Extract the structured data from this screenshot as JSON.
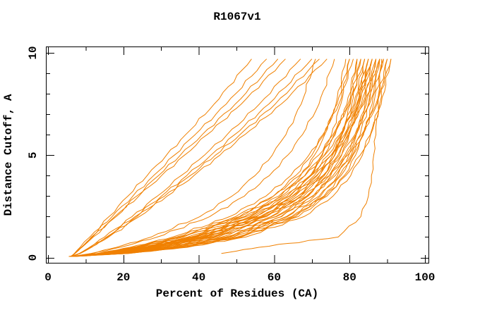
{
  "window": {
    "background": "#ffffff"
  },
  "chart_data": {
    "type": "line",
    "title": "R1067v1",
    "xlabel": "Percent of Residues (CA)",
    "ylabel": "Distance Cutoff, A",
    "xlim": [
      0,
      100
    ],
    "ylim": [
      0,
      10
    ],
    "x_major_ticks": [
      0,
      20,
      40,
      60,
      80,
      100
    ],
    "x_minor_tick_step": 10,
    "y_major_ticks": [
      0,
      5,
      10
    ],
    "y_minor_tick_step": 1,
    "grid": false,
    "legend": false,
    "curve_color": "#f08000",
    "axis_color": "#000000",
    "cutoffs": [
      0.05,
      0.2,
      0.5,
      1,
      2,
      3,
      4,
      5,
      6,
      7.5,
      9.7
    ],
    "series_unit": "percent of CA residues under each distance cutoff (estimated per curve)",
    "series": [
      [
        6.0,
        7.0,
        8.5,
        11.1,
        16.2,
        21.2,
        26.3,
        31.4,
        36.5,
        44.1,
        54.0
      ],
      [
        6.2,
        7.1,
        8.8,
        11.5,
        17.0,
        22.5,
        28.0,
        33.5,
        39.0,
        47.3,
        58.0
      ],
      [
        6.0,
        7.2,
        8.9,
        11.8,
        17.7,
        23.5,
        29.3,
        35.1,
        40.9,
        49.7,
        61.0
      ],
      [
        6.3,
        7.2,
        9.0,
        12.0,
        18.1,
        24.1,
        30.1,
        36.2,
        42.2,
        51.3,
        63.0
      ],
      [
        6.1,
        8.3,
        11.0,
        15.0,
        22.3,
        29.0,
        35.3,
        41.5,
        47.5,
        56.1,
        67.0
      ],
      [
        6.4,
        8.4,
        11.2,
        15.5,
        23.1,
        30.1,
        36.8,
        43.2,
        49.5,
        58.6,
        70.0
      ],
      [
        6.0,
        8.5,
        11.4,
        15.8,
        23.6,
        30.9,
        37.7,
        44.4,
        50.9,
        60.3,
        72.0
      ],
      [
        6.2,
        8.6,
        11.6,
        16.1,
        24.2,
        31.6,
        38.7,
        45.6,
        52.2,
        61.9,
        74.0
      ],
      [
        6.5,
        11.8,
        19.2,
        29.0,
        42.9,
        52.1,
        58.7,
        63.6,
        67.5,
        71.9,
        76.0
      ],
      [
        6.1,
        11.4,
        18.2,
        27.4,
        40.3,
        48.8,
        54.9,
        59.5,
        63.1,
        67.2,
        71.0
      ],
      [
        6.0,
        20.7,
        35.5,
        50.2,
        65.0,
        72.3,
        76.8,
        79.8,
        81.8,
        84.1,
        86.0
      ],
      [
        6.8,
        21.1,
        36.3,
        51.3,
        66.4,
        74.0,
        78.6,
        81.6,
        83.7,
        86.0,
        88.0
      ],
      [
        5.6,
        20.4,
        34.8,
        49.1,
        63.5,
        70.7,
        75.0,
        77.9,
        79.9,
        82.1,
        84.0
      ],
      [
        6.2,
        18.3,
        31.6,
        46.1,
        61.8,
        70.3,
        75.6,
        79.1,
        81.7,
        84.5,
        87.0
      ],
      [
        7.0,
        18.0,
        31.0,
        45.1,
        60.4,
        68.7,
        73.9,
        77.3,
        79.9,
        82.6,
        85.0
      ],
      [
        5.8,
        18.6,
        32.2,
        47.1,
        63.2,
        71.9,
        77.3,
        80.9,
        83.6,
        86.4,
        89.0
      ],
      [
        6.4,
        16.4,
        28.3,
        42.0,
        58.0,
        67.0,
        72.9,
        76.9,
        79.8,
        83.1,
        86.0
      ],
      [
        5.5,
        16.7,
        28.9,
        42.9,
        59.3,
        68.6,
        74.6,
        78.7,
        81.7,
        85.0,
        88.0
      ],
      [
        6.9,
        16.1,
        27.8,
        41.1,
        56.7,
        65.5,
        71.2,
        75.1,
        78.0,
        81.2,
        84.0
      ],
      [
        6.1,
        14.9,
        25.6,
        38.7,
        55.0,
        64.9,
        71.4,
        76.1,
        79.5,
        83.4,
        87.0
      ],
      [
        6.6,
        14.7,
        25.1,
        37.9,
        53.8,
        63.4,
        69.8,
        74.3,
        77.7,
        81.5,
        85.0
      ],
      [
        5.7,
        15.1,
        26.1,
        39.5,
        56.2,
        66.3,
        73.0,
        77.8,
        81.4,
        85.3,
        89.0
      ],
      [
        6.3,
        13.5,
        22.9,
        34.9,
        51.0,
        61.2,
        68.2,
        73.4,
        77.4,
        81.9,
        86.0
      ],
      [
        6.8,
        13.7,
        23.3,
        35.6,
        52.1,
        62.6,
        69.8,
        75.1,
        79.1,
        83.8,
        88.0
      ],
      [
        5.9,
        21.5,
        37.0,
        52.5,
        67.9,
        75.6,
        80.3,
        83.4,
        85.6,
        88.0,
        90.0
      ],
      [
        6.5,
        18.9,
        32.9,
        48.1,
        64.6,
        73.5,
        79.0,
        82.8,
        85.5,
        88.4,
        91.0
      ],
      [
        6.0,
        16.9,
        29.4,
        43.8,
        60.6,
        70.1,
        76.2,
        80.4,
        83.5,
        87.0,
        90.0
      ],
      [
        6.7,
        15.4,
        26.6,
        40.3,
        57.4,
        67.8,
        74.6,
        79.5,
        83.2,
        87.3,
        91.0
      ],
      [
        5.6,
        20.0,
        34.0,
        48.0,
        62.0,
        69.0,
        73.3,
        76.1,
        78.0,
        80.2,
        82.0
      ],
      [
        6.2,
        17.7,
        30.3,
        44.1,
        59.1,
        67.1,
        72.1,
        75.5,
        78.0,
        80.6,
        83.0
      ],
      [
        6.9,
        15.9,
        27.2,
        40.2,
        55.4,
        64.0,
        69.5,
        73.3,
        76.2,
        79.3,
        82.0
      ],
      [
        5.8,
        14.5,
        24.6,
        37.1,
        52.6,
        62.0,
        68.1,
        72.6,
        75.9,
        79.6,
        83.0
      ],
      [
        6.4,
        13.3,
        22.5,
        34.2,
        49.8,
        59.8,
        66.7,
        71.8,
        75.6,
        80.0,
        84.0
      ],
      [
        6.0,
        17.2,
        29.4,
        42.6,
        57.0,
        64.8,
        69.6,
        72.8,
        75.2,
        77.7,
        80.0
      ],
      [
        6.6,
        15.5,
        26.4,
        38.9,
        53.5,
        61.7,
        67.0,
        70.7,
        73.4,
        76.4,
        79.0
      ],
      [
        5.7,
        14.1,
        23.9,
        35.9,
        50.8,
        59.8,
        65.7,
        70.0,
        73.2,
        76.7,
        80.0
      ],
      [
        6.3,
        13.1,
        21.8,
        33.1,
        48.2,
        57.8,
        64.4,
        69.2,
        72.9,
        77.2,
        81.0
      ],
      [
        6.8,
        20.9,
        35.9,
        50.8,
        65.7,
        73.2,
        77.7,
        80.7,
        82.8,
        85.1,
        87.0
      ],
      [
        5.9,
        16.3,
        28.0,
        41.6,
        57.4,
        66.3,
        72.0,
        76.0,
        78.9,
        82.2,
        85.0
      ],
      [
        6.5,
        14.8,
        25.4,
        38.3,
        54.4,
        64.2,
        70.6,
        75.2,
        78.6,
        82.5,
        86.0
      ],
      [
        null,
        46.0,
        56.0,
        77.0,
        83.0,
        85.0,
        85.8,
        86.4,
        87.0,
        87.6,
        88.5
      ]
    ]
  }
}
